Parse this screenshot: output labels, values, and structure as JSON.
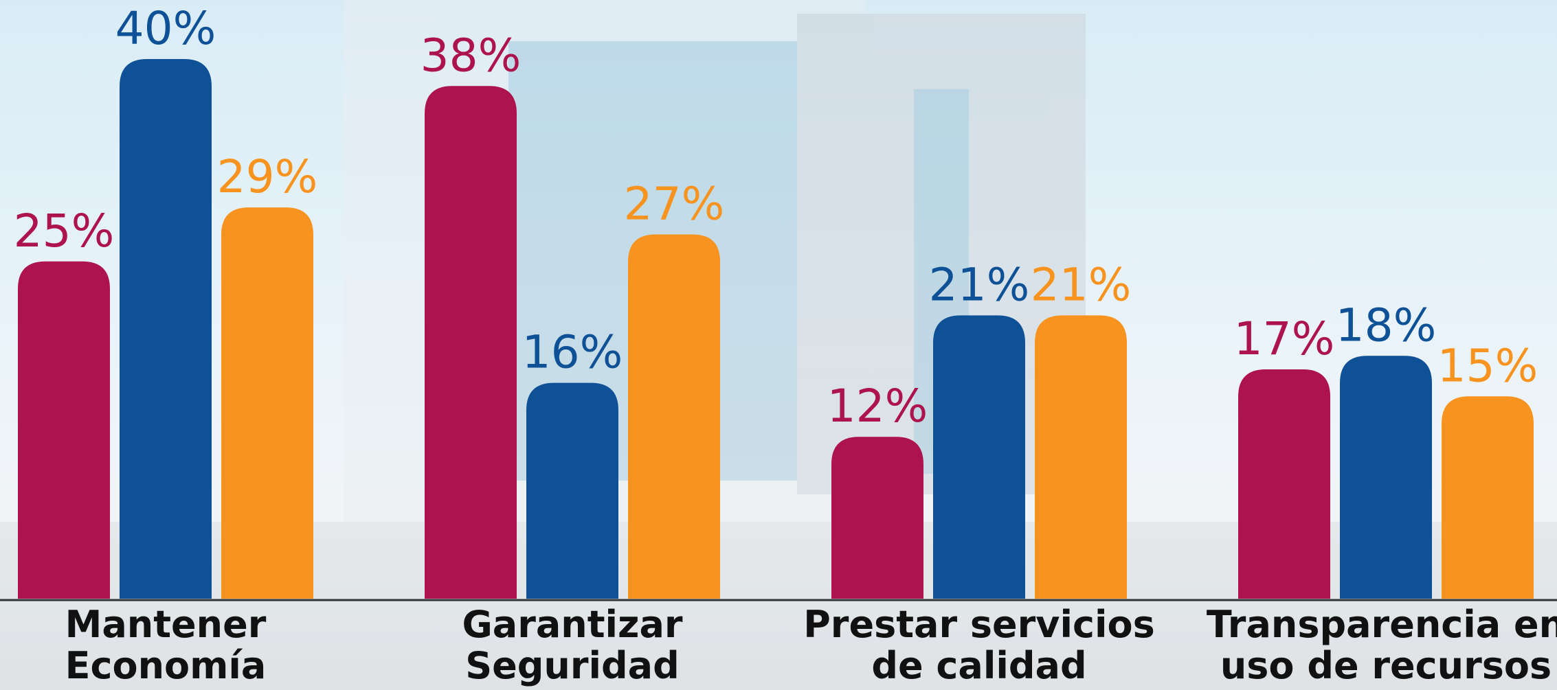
{
  "chart_data": {
    "type": "bar",
    "categories": [
      "Mantener\nEconomía",
      "Garantizar\nSeguridad",
      "Prestar servicios\nde calidad",
      "Transparencia en\nuso de recursos"
    ],
    "series": [
      {
        "color": "#ad134d",
        "values": [
          25,
          38,
          12,
          17
        ],
        "value_labels": [
          "25%",
          "38%",
          "12%",
          "17%"
        ]
      },
      {
        "color": "#0e5196",
        "values": [
          40,
          16,
          21,
          18
        ],
        "value_labels": [
          "40%",
          "16%",
          "21%",
          "18%"
        ]
      },
      {
        "color": "#f7931e",
        "values": [
          29,
          27,
          21,
          15
        ],
        "value_labels": [
          "29%",
          "27%",
          "21%",
          "15%"
        ]
      }
    ]
  }
}
